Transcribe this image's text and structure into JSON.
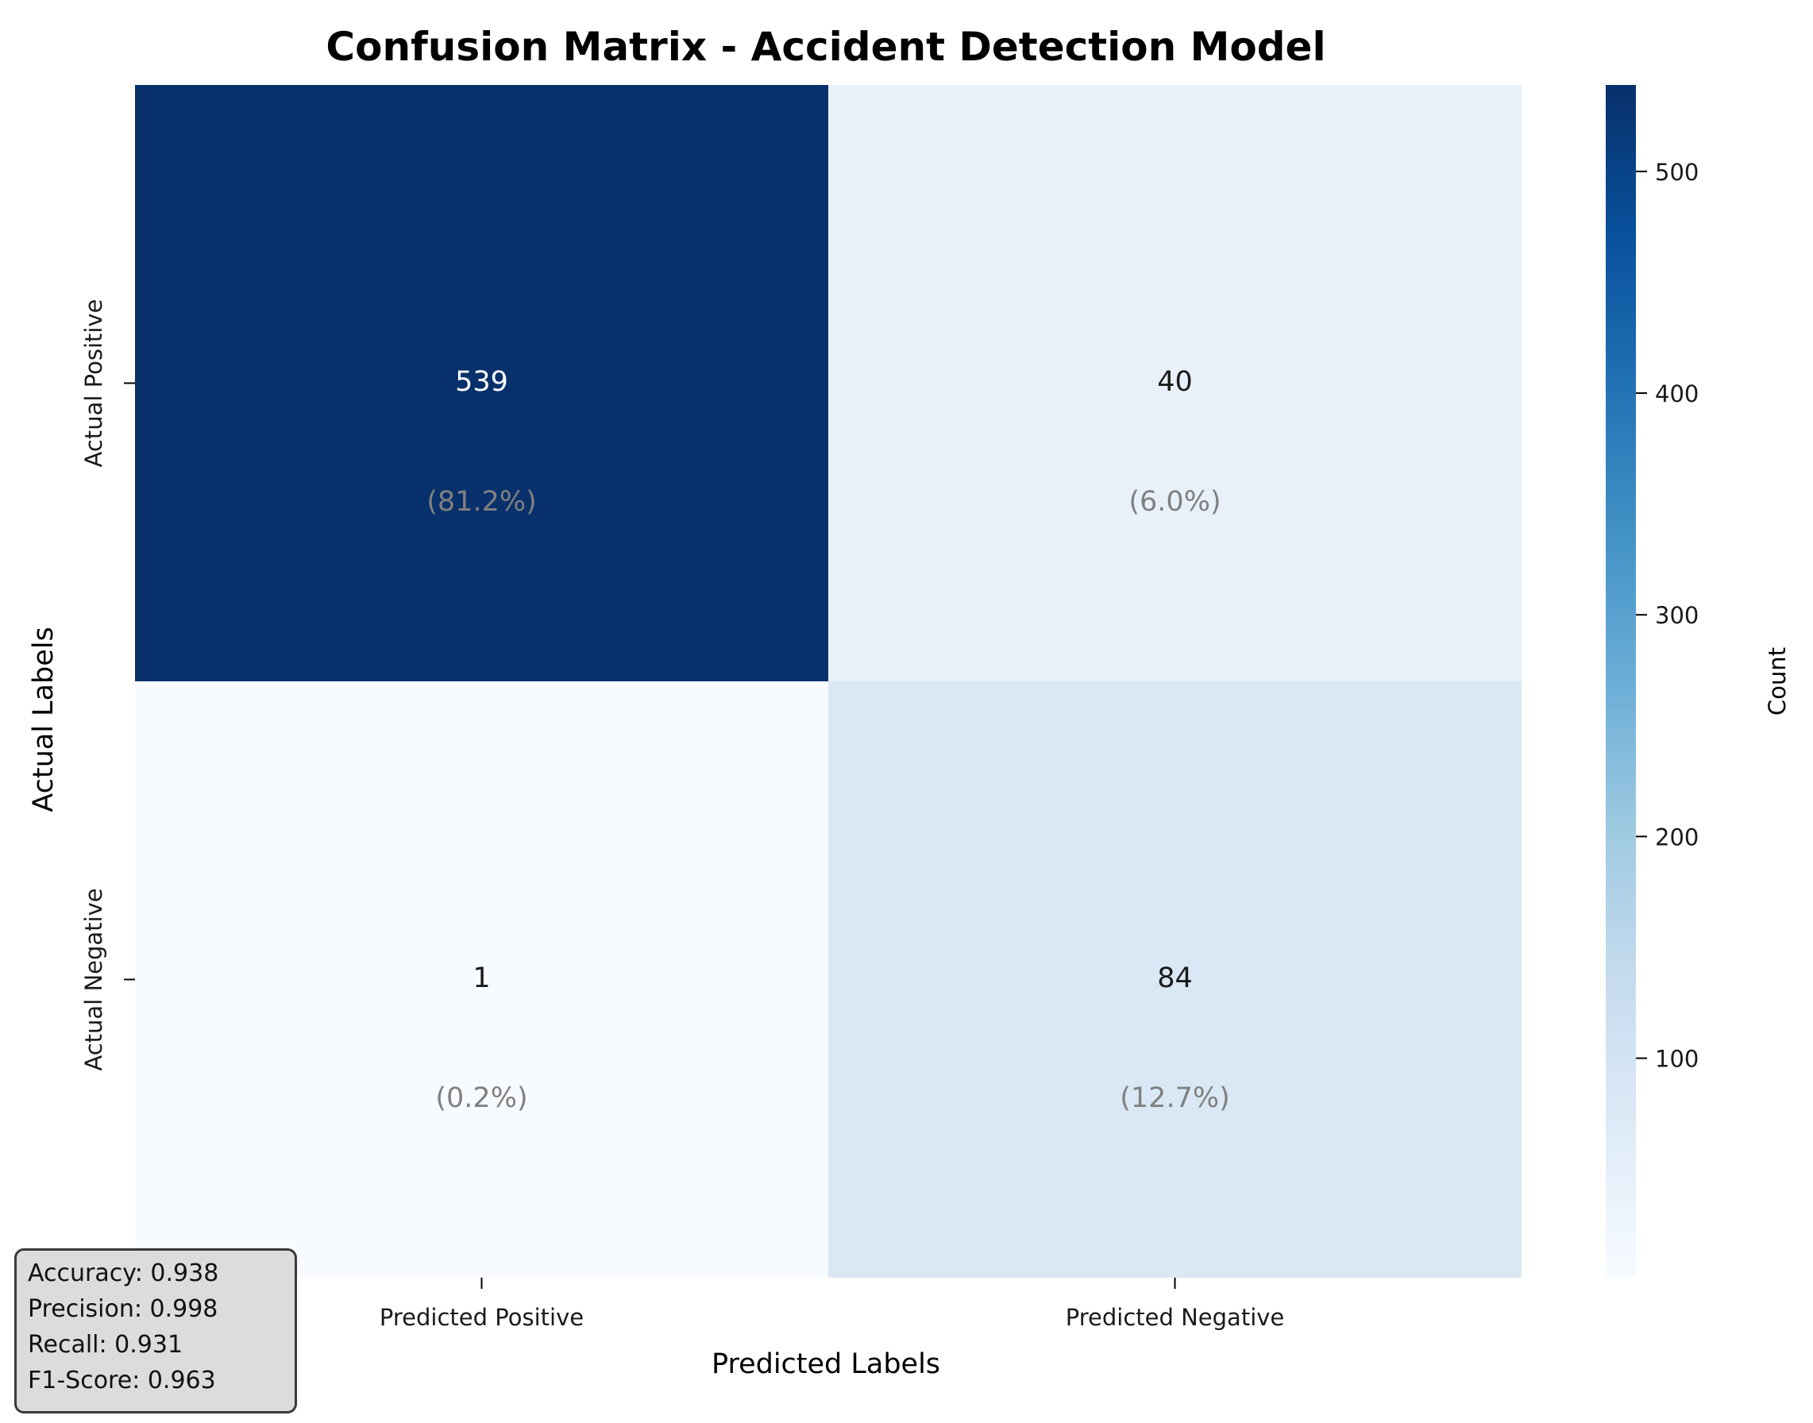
{
  "chart_data": {
    "type": "heatmap",
    "title": "Confusion Matrix - Accident Detection Model",
    "xlabel": "Predicted Labels",
    "ylabel": "Actual Labels",
    "x_categories": [
      "Predicted Positive",
      "Predicted Negative"
    ],
    "y_categories": [
      "Actual Positive",
      "Actual Negative"
    ],
    "values": [
      [
        539,
        40
      ],
      [
        1,
        84
      ]
    ],
    "percent_labels": [
      [
        "(81.2%)",
        "(6.0%)"
      ],
      [
        "(0.2%)",
        "(12.7%)"
      ]
    ],
    "colormap": "Blues",
    "colors": {
      "539": "#08306b",
      "40": "#e8f1fa",
      "1": "#f7fbff",
      "84": "#dae8f5",
      "percent_text": "#808080"
    },
    "colorbar": {
      "label": "Count",
      "range": [
        1,
        539
      ],
      "ticks": [
        100,
        200,
        300,
        400,
        500
      ]
    }
  },
  "metrics": {
    "accuracy": "Accuracy: 0.938",
    "precision": "Precision: 0.998",
    "recall": "Recall: 0.931",
    "f1": "F1-Score: 0.963"
  }
}
